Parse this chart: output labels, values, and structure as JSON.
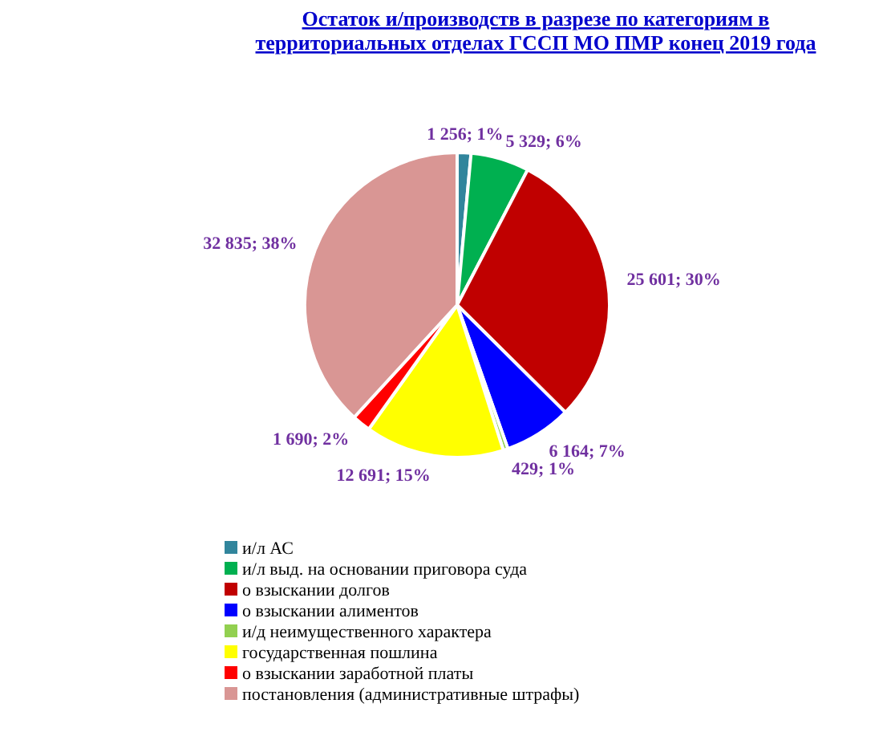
{
  "chart_data": {
    "type": "pie",
    "title": "Остаток и/производств в разрезе по категориям  в территориальных отделах ГССП МО  ПМР конец 2019 года",
    "categories": [
      "и/л АС",
      "и/л выд. на основании приговора суда",
      "о взыскании  долгов",
      "о взыскании алиментов",
      "и/д неимущественного характера",
      "государственная пошлина",
      "о взыскании заработной платы",
      "постановления (административные штрафы)"
    ],
    "values": [
      1256,
      5329,
      25601,
      6164,
      429,
      12691,
      1690,
      32835
    ],
    "value_labels": [
      "1 256; 1%",
      "5 329; 6%",
      "25 601; 30%",
      "6 164; 7%",
      "429; 1%",
      "12 691; 15%",
      "1 690; 2%",
      "32 835; 38%"
    ],
    "colors": [
      "#31859c",
      "#00b050",
      "#c00000",
      "#0000ff",
      "#92d050",
      "#ffff00",
      "#ff0000",
      "#d99694"
    ],
    "legend": "bottom"
  }
}
